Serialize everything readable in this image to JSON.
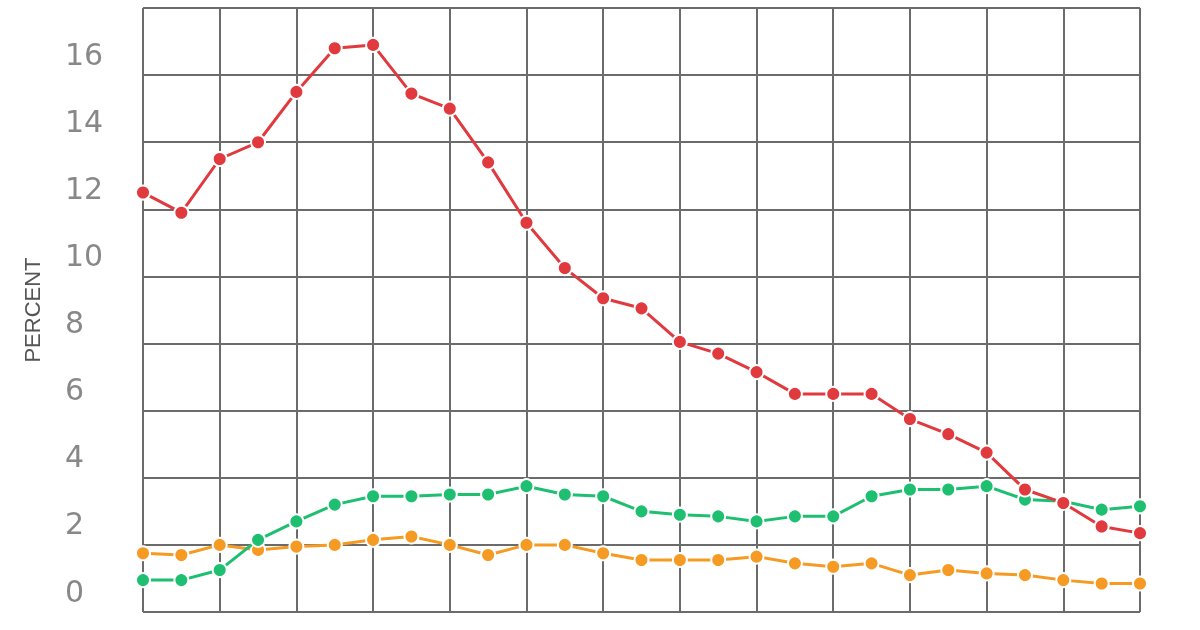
{
  "chart_data": {
    "type": "line",
    "ylabel": "PERCENT",
    "categories": [
      null,
      null,
      null,
      null,
      null,
      null,
      null,
      null,
      null,
      null,
      null,
      null,
      null,
      null,
      null,
      null,
      null,
      null,
      null,
      null,
      null,
      null,
      null,
      null,
      null,
      null,
      null
    ],
    "series": [
      {
        "color": "#e0393e",
        "values": [
          12.5,
          11.9,
          13.5,
          14.0,
          15.5,
          16.8,
          16.9,
          15.45,
          15.0,
          13.4,
          11.6,
          10.25,
          9.35,
          9.05,
          8.05,
          7.7,
          7.15,
          6.5,
          6.5,
          6.5,
          5.75,
          5.3,
          4.75,
          3.65,
          3.25,
          2.55,
          2.35
        ]
      },
      {
        "color": "#1fbf72",
        "values": [
          0.95,
          0.95,
          1.25,
          2.15,
          2.7,
          3.2,
          3.45,
          3.45,
          3.5,
          3.5,
          3.75,
          3.5,
          3.45,
          3.0,
          2.9,
          2.85,
          2.7,
          2.85,
          2.85,
          3.45,
          3.65,
          3.65,
          3.75,
          3.35,
          3.3,
          3.05,
          3.15
        ]
      },
      {
        "color": "#f59a23",
        "values": [
          1.75,
          1.7,
          2.0,
          1.85,
          1.95,
          2.0,
          2.15,
          2.25,
          2.0,
          1.7,
          2.0,
          2.0,
          1.75,
          1.55,
          1.55,
          1.55,
          1.65,
          1.45,
          1.35,
          1.45,
          1.1,
          1.25,
          1.15,
          1.1,
          0.95,
          0.85,
          0.85
        ]
      }
    ],
    "ylim": [
      0,
      18
    ],
    "yticks": [
      0,
      2,
      4,
      6,
      8,
      10,
      12,
      14,
      16,
      {
        "value": 18,
        "label": null
      }
    ],
    "grid": true,
    "marker": "circle",
    "line_style": "solid",
    "tick_labels": "y"
  }
}
